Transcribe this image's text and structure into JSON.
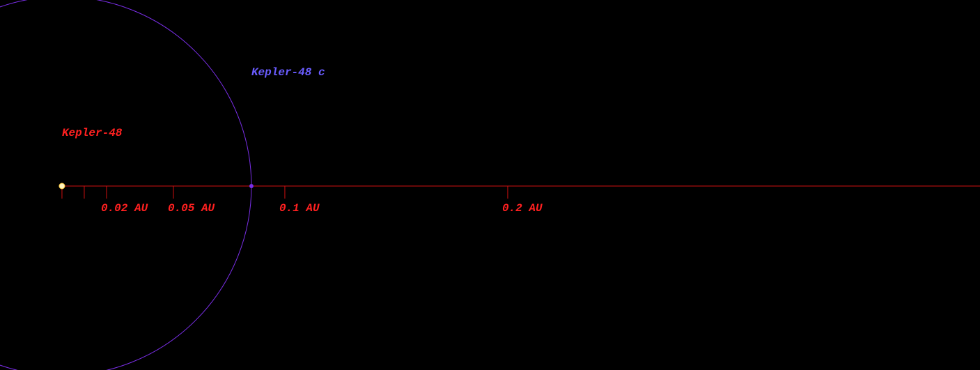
{
  "chart_data": {
    "type": "orbit",
    "star": {
      "name": "Kepler-48",
      "color": "#ff2020"
    },
    "planets": [
      {
        "name": "Kepler-48 c",
        "color": "#6a5cff",
        "orbit_color": "#7a2ee8",
        "a": 0.085
      }
    ],
    "axis_color": "#d01010",
    "xlim": [
      -0.0278,
      0.4119
    ],
    "xticks": [
      {
        "value": 0,
        "label": null
      },
      {
        "value": 0.01,
        "label": null
      },
      {
        "value": 0.02,
        "label": "0.02 AU"
      },
      {
        "value": 0.05,
        "label": "0.05 AU"
      },
      {
        "value": 0.1,
        "label": "0.1 AU"
      },
      {
        "value": 0.2,
        "label": "0.2 AU"
      }
    ]
  }
}
